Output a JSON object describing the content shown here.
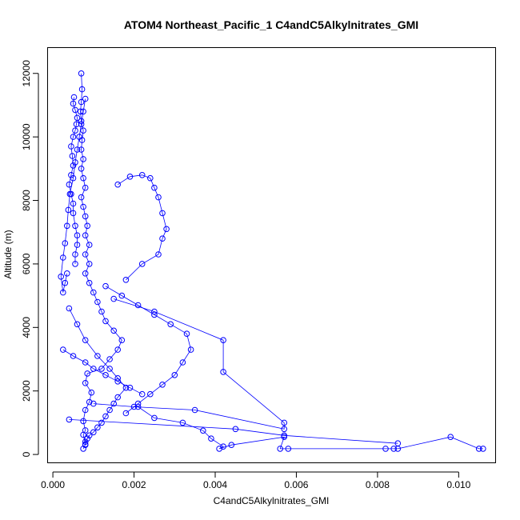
{
  "chart_data": {
    "type": "line",
    "title": "ATOM4 Northeast_Pacific_1 C4andC5Alkylnitrates_GMI",
    "xlabel": "C4andC5Alkylnitrates_GMI",
    "ylabel": "Altitude (m)",
    "xlim": [
      -0.00012,
      0.0109
    ],
    "ylim": [
      -250,
      12800
    ],
    "x_ticks": [
      0.0,
      0.002,
      0.004,
      0.006,
      0.008,
      0.01
    ],
    "x_tick_labels": [
      "0.000",
      "0.002",
      "0.004",
      "0.006",
      "0.008",
      "0.010"
    ],
    "y_ticks": [
      0,
      2000,
      4000,
      6000,
      8000,
      10000,
      12000
    ],
    "y_tick_labels": [
      "0",
      "2000",
      "4000",
      "6000",
      "8000",
      "10000",
      "12000"
    ],
    "grid": false,
    "legend": "none",
    "marker": "open-circle",
    "color": "#0000ff",
    "series": [
      {
        "x": [
          0.00075,
          0.0008,
          0.00075,
          0.0008,
          0.00075,
          0.0008,
          0.0009,
          0.00095,
          0.0008,
          0.00085,
          0.0012,
          0.0014,
          0.0016,
          0.0017,
          0.0015,
          0.0013,
          0.0012,
          0.0011,
          0.001,
          0.0009,
          0.0008,
          0.0009,
          0.0008,
          0.0009,
          0.0008,
          0.00085,
          0.0008,
          0.00075,
          0.0007,
          0.0008,
          0.00075,
          0.0007,
          0.00075,
          0.0007,
          0.00072,
          0.00075,
          0.0007,
          0.00068,
          0.0007,
          0.00072,
          0.0007
        ],
        "y": [
          180,
          320,
          620,
          760,
          1050,
          1400,
          1650,
          1950,
          2250,
          2550,
          2700,
          3000,
          3300,
          3600,
          3900,
          4200,
          4500,
          4800,
          5100,
          5400,
          5700,
          6000,
          6300,
          6600,
          6900,
          7200,
          7500,
          7800,
          8100,
          8400,
          8700,
          9000,
          9300,
          9600,
          9900,
          10200,
          10500,
          10800,
          11100,
          11500,
          12000
        ]
      },
      {
        "x": [
          0.00052,
          0.0005,
          0.00055,
          0.0006,
          0.00058,
          0.00055,
          0.0005,
          0.00045,
          0.00048,
          0.0005,
          0.00045,
          0.0004,
          0.00045,
          0.0005,
          0.0005,
          0.00055,
          0.0006,
          0.0006,
          0.00055,
          0.00055
        ],
        "y": [
          11250,
          11050,
          10850,
          10600,
          10400,
          10200,
          10000,
          9700,
          9400,
          9100,
          8800,
          8500,
          8200,
          7900,
          7600,
          7200,
          6900,
          6600,
          6300,
          6000
        ]
      },
      {
        "x": [
          0.00035,
          0.0003,
          0.00025,
          0.0002,
          0.00025,
          0.0003,
          0.00035,
          0.00038,
          0.00042,
          0.0005,
          0.00055,
          0.0006,
          0.00065,
          0.0007,
          0.00075,
          0.0008
        ],
        "y": [
          5700,
          5400,
          5100,
          5600,
          6200,
          6650,
          7200,
          7700,
          8200,
          8700,
          9200,
          9600,
          10000,
          10400,
          10800,
          11200
        ]
      },
      {
        "x": [
          0.0004,
          0.0006,
          0.0008,
          0.0011,
          0.0014,
          0.0016,
          0.0018,
          0.0016,
          0.0015,
          0.0014,
          0.0013,
          0.0012,
          0.0011,
          0.001,
          0.0009,
          0.00085,
          0.0008,
          0.0008
        ],
        "y": [
          4600,
          4100,
          3600,
          3100,
          2700,
          2400,
          2100,
          1800,
          1600,
          1400,
          1200,
          1000,
          850,
          700,
          600,
          500,
          400,
          300
        ]
      },
      {
        "x": [
          0.0021,
          0.0025,
          0.0032,
          0.0037,
          0.0039,
          0.0042,
          0.0041,
          0.0044,
          0.0057,
          0.0056,
          0.0058,
          0.0082,
          0.0084,
          0.0085,
          0.0098,
          0.0105,
          0.0106
        ],
        "y": [
          1500,
          1150,
          1000,
          750,
          500,
          250,
          180,
          300,
          550,
          180,
          180,
          180,
          180,
          180,
          550,
          180,
          180
        ]
      },
      {
        "x": [
          0.0018,
          0.0022,
          0.0026,
          0.0027,
          0.0028,
          0.0027,
          0.0026,
          0.0025,
          0.0024,
          0.0022,
          0.0019,
          0.0016
        ],
        "y": [
          5500,
          6000,
          6300,
          6800,
          7100,
          7600,
          8100,
          8400,
          8700,
          8800,
          8750,
          8500
        ]
      },
      {
        "x": [
          0.0013,
          0.0017,
          0.0021,
          0.0025,
          0.0029,
          0.0033,
          0.0034,
          0.0032,
          0.003,
          0.0027,
          0.0024,
          0.0021,
          0.0018
        ],
        "y": [
          5300,
          5000,
          4700,
          4400,
          4100,
          3800,
          3300,
          2900,
          2500,
          2200,
          1900,
          1600,
          1300
        ]
      },
      {
        "x": [
          0.0015,
          0.0025,
          0.0042,
          0.0042,
          0.0057,
          0.0057,
          0.0035,
          0.002,
          0.001
        ],
        "y": [
          4900,
          4500,
          3600,
          2600,
          1000,
          800,
          1400,
          1500,
          1600
        ]
      },
      {
        "x": [
          0.00025,
          0.0005,
          0.0008,
          0.001,
          0.0013,
          0.0016,
          0.0019,
          0.0022
        ],
        "y": [
          3300,
          3100,
          2900,
          2700,
          2500,
          2300,
          2100,
          1900
        ]
      },
      {
        "x": [
          0.0004,
          0.0045,
          0.0057,
          0.0085
        ],
        "y": [
          1100,
          800,
          600,
          350
        ]
      }
    ]
  }
}
